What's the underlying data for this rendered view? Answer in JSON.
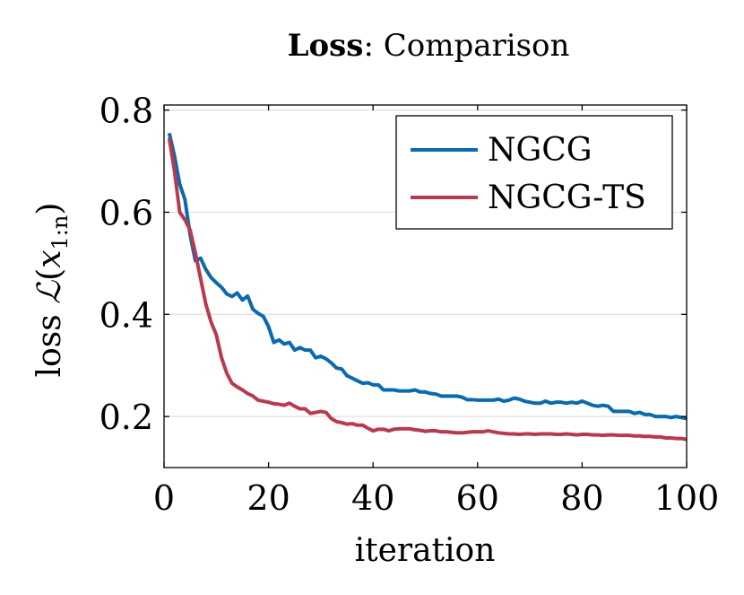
{
  "chart_data": {
    "type": "line",
    "title_bold": "Loss",
    "title_rest": ": Comparison",
    "xlabel": "iteration",
    "ylabel_prefix": "loss ",
    "ylabel_math": "ℒ",
    "ylabel_open": "(",
    "ylabel_var": "x",
    "ylabel_sub": "1:n",
    "ylabel_close": ")",
    "xlim": [
      0,
      100
    ],
    "ylim": [
      0.1,
      0.81
    ],
    "xticks": [
      0,
      20,
      40,
      60,
      80,
      100
    ],
    "xtick_labels": [
      "0",
      "20",
      "40",
      "60",
      "80",
      "100"
    ],
    "yticks": [
      0.2,
      0.4,
      0.6,
      0.8
    ],
    "ytick_labels": [
      "0.2",
      "0.4",
      "0.6",
      "0.8"
    ],
    "grid": "horizontal",
    "legend_position": "top-right",
    "series": [
      {
        "name": "NGCG",
        "color": "#0b6aad",
        "x": [
          1,
          2,
          3,
          4,
          5,
          6,
          7,
          8,
          9,
          10,
          11,
          12,
          13,
          14,
          15,
          16,
          17,
          18,
          19,
          20,
          21,
          22,
          23,
          24,
          25,
          26,
          27,
          28,
          29,
          30,
          31,
          32,
          33,
          34,
          35,
          36,
          37,
          38,
          39,
          40,
          41,
          42,
          43,
          44,
          45,
          46,
          47,
          48,
          49,
          50,
          51,
          52,
          53,
          54,
          55,
          56,
          57,
          58,
          59,
          60,
          61,
          62,
          63,
          64,
          65,
          66,
          67,
          68,
          69,
          70,
          71,
          72,
          73,
          74,
          75,
          76,
          77,
          78,
          79,
          80,
          81,
          82,
          83,
          84,
          85,
          86,
          87,
          88,
          89,
          90,
          91,
          92,
          93,
          94,
          95,
          96,
          97,
          98,
          99,
          100
        ],
        "values": [
          0.755,
          0.71,
          0.655,
          0.625,
          0.555,
          0.505,
          0.51,
          0.488,
          0.472,
          0.462,
          0.453,
          0.44,
          0.435,
          0.442,
          0.428,
          0.436,
          0.41,
          0.402,
          0.396,
          0.376,
          0.345,
          0.35,
          0.342,
          0.345,
          0.33,
          0.335,
          0.33,
          0.33,
          0.315,
          0.318,
          0.313,
          0.305,
          0.295,
          0.293,
          0.28,
          0.275,
          0.27,
          0.265,
          0.266,
          0.262,
          0.262,
          0.252,
          0.252,
          0.252,
          0.25,
          0.25,
          0.25,
          0.252,
          0.248,
          0.248,
          0.245,
          0.244,
          0.24,
          0.24,
          0.24,
          0.24,
          0.238,
          0.233,
          0.233,
          0.232,
          0.232,
          0.232,
          0.232,
          0.234,
          0.23,
          0.232,
          0.236,
          0.234,
          0.23,
          0.228,
          0.226,
          0.226,
          0.23,
          0.226,
          0.228,
          0.228,
          0.226,
          0.228,
          0.226,
          0.23,
          0.226,
          0.222,
          0.22,
          0.222,
          0.22,
          0.21,
          0.21,
          0.21,
          0.21,
          0.206,
          0.208,
          0.204,
          0.204,
          0.2,
          0.2,
          0.2,
          0.198,
          0.2,
          0.198,
          0.196
        ]
      },
      {
        "name": "NGCG-TS",
        "color": "#b83a4f",
        "x": [
          1,
          2,
          3,
          4,
          5,
          6,
          7,
          8,
          9,
          10,
          11,
          12,
          13,
          14,
          15,
          16,
          17,
          18,
          19,
          20,
          21,
          22,
          23,
          24,
          25,
          26,
          27,
          28,
          29,
          30,
          31,
          32,
          33,
          34,
          35,
          36,
          37,
          38,
          39,
          40,
          41,
          42,
          43,
          44,
          45,
          46,
          47,
          48,
          49,
          50,
          51,
          52,
          53,
          54,
          55,
          56,
          57,
          58,
          59,
          60,
          61,
          62,
          63,
          64,
          65,
          66,
          67,
          68,
          69,
          70,
          71,
          72,
          73,
          74,
          75,
          76,
          77,
          78,
          79,
          80,
          81,
          82,
          83,
          84,
          85,
          86,
          87,
          88,
          89,
          90,
          91,
          92,
          93,
          94,
          95,
          96,
          97,
          98,
          99,
          100
        ],
        "values": [
          0.745,
          0.68,
          0.6,
          0.585,
          0.565,
          0.52,
          0.47,
          0.42,
          0.385,
          0.36,
          0.315,
          0.285,
          0.265,
          0.258,
          0.252,
          0.245,
          0.24,
          0.232,
          0.23,
          0.228,
          0.225,
          0.224,
          0.222,
          0.226,
          0.22,
          0.215,
          0.215,
          0.206,
          0.208,
          0.21,
          0.208,
          0.196,
          0.19,
          0.188,
          0.185,
          0.186,
          0.183,
          0.183,
          0.177,
          0.172,
          0.175,
          0.175,
          0.172,
          0.175,
          0.176,
          0.176,
          0.176,
          0.174,
          0.173,
          0.171,
          0.172,
          0.172,
          0.17,
          0.17,
          0.169,
          0.168,
          0.168,
          0.169,
          0.17,
          0.17,
          0.17,
          0.172,
          0.17,
          0.168,
          0.167,
          0.166,
          0.166,
          0.165,
          0.166,
          0.166,
          0.165,
          0.166,
          0.166,
          0.166,
          0.165,
          0.165,
          0.166,
          0.165,
          0.164,
          0.165,
          0.165,
          0.164,
          0.164,
          0.163,
          0.164,
          0.164,
          0.163,
          0.163,
          0.163,
          0.162,
          0.162,
          0.161,
          0.161,
          0.16,
          0.16,
          0.158,
          0.158,
          0.157,
          0.157,
          0.155
        ]
      }
    ]
  }
}
